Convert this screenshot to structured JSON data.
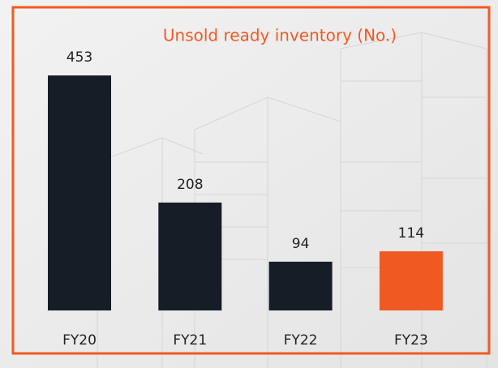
{
  "chart_data": {
    "type": "bar",
    "title": "Unsold ready inventory (No.)",
    "categories": [
      "FY20",
      "FY21",
      "FY22",
      "FY23"
    ],
    "values": [
      453,
      208,
      94,
      114
    ],
    "colors": [
      "#161d27",
      "#161d27",
      "#161d27",
      "#f05a22"
    ]
  }
}
